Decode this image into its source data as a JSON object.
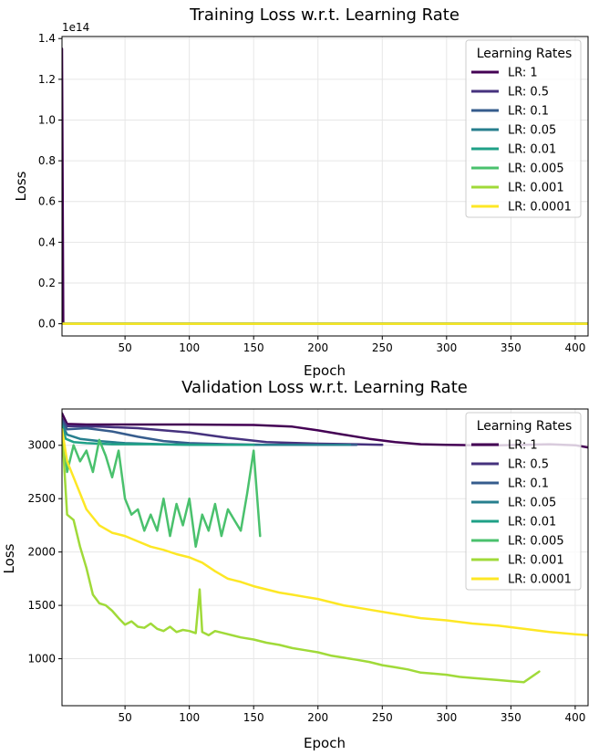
{
  "chart_data": [
    {
      "type": "line",
      "title": "Training Loss w.r.t. Learning Rate",
      "xlabel": "Epoch",
      "ylabel": "Loss",
      "y_offset_label": "1e14",
      "xlim": [
        1,
        410
      ],
      "ylim": [
        -0.06,
        1.41
      ],
      "x_ticks": [
        50,
        100,
        150,
        200,
        250,
        300,
        350,
        400
      ],
      "y_ticks": [
        0.0,
        0.2,
        0.4,
        0.6,
        0.8,
        1.0,
        1.2,
        1.4
      ],
      "y_tick_labels": [
        "0.0",
        "0.2",
        "0.4",
        "0.6",
        "0.8",
        "1.0",
        "1.2",
        "1.4"
      ],
      "grid": true,
      "legend": {
        "title": "Learning Rates",
        "position": "top-right"
      },
      "series": [
        {
          "name": "LR: 1",
          "color": "#440154",
          "x": [
            1,
            2,
            3,
            10,
            100,
            200,
            300,
            410
          ],
          "y": [
            1.35,
            0.003,
            0.0,
            0.0,
            0.0,
            0.0,
            0.0,
            0.0
          ]
        },
        {
          "name": "LR: 0.5",
          "color": "#46327e",
          "x": [
            1,
            410
          ],
          "y": [
            0.0,
            0.0
          ]
        },
        {
          "name": "LR: 0.1",
          "color": "#365c8d",
          "x": [
            1,
            410
          ],
          "y": [
            0.0,
            0.0
          ]
        },
        {
          "name": "LR: 0.05",
          "color": "#277f8e",
          "x": [
            1,
            410
          ],
          "y": [
            0.0,
            0.0
          ]
        },
        {
          "name": "LR: 0.01",
          "color": "#1fa187",
          "x": [
            1,
            410
          ],
          "y": [
            0.0,
            0.0
          ]
        },
        {
          "name": "LR: 0.005",
          "color": "#4ac16d",
          "x": [
            1,
            410
          ],
          "y": [
            0.0,
            0.0
          ]
        },
        {
          "name": "LR: 0.001",
          "color": "#a0da39",
          "x": [
            1,
            410
          ],
          "y": [
            0.0,
            0.0
          ]
        },
        {
          "name": "LR: 0.0001",
          "color": "#fde725",
          "x": [
            1,
            410
          ],
          "y": [
            0.0,
            0.0
          ]
        }
      ]
    },
    {
      "type": "line",
      "title": "Validation Loss w.r.t. Learning Rate",
      "xlabel": "Epoch",
      "ylabel": "Loss",
      "xlim": [
        1,
        410
      ],
      "ylim": [
        560,
        3340
      ],
      "x_ticks": [
        50,
        100,
        150,
        200,
        250,
        300,
        350,
        400
      ],
      "y_ticks": [
        1000,
        1500,
        2000,
        2500,
        3000
      ],
      "y_tick_labels": [
        "1000",
        "1500",
        "2000",
        "2500",
        "3000"
      ],
      "grid": true,
      "legend": {
        "title": "Learning Rates",
        "position": "top-right"
      },
      "series": [
        {
          "name": "LR: 1",
          "color": "#440154",
          "x": [
            1,
            5,
            20,
            50,
            100,
            150,
            180,
            200,
            220,
            240,
            260,
            280,
            300,
            320,
            340,
            360,
            380,
            400,
            410
          ],
          "y": [
            3300,
            3200,
            3195,
            3195,
            3195,
            3190,
            3175,
            3140,
            3100,
            3060,
            3030,
            3010,
            3005,
            3000,
            3000,
            3005,
            3010,
            3000,
            2980
          ]
        },
        {
          "name": "LR: 0.5",
          "color": "#46327e",
          "x": [
            1,
            5,
            30,
            60,
            100,
            130,
            160,
            200,
            230,
            250
          ],
          "y": [
            3250,
            3180,
            3175,
            3160,
            3120,
            3070,
            3030,
            3015,
            3010,
            3005
          ]
        },
        {
          "name": "LR: 0.1",
          "color": "#365c8d",
          "x": [
            1,
            5,
            20,
            40,
            60,
            80,
            100,
            130,
            160,
            200,
            230
          ],
          "y": [
            3230,
            3150,
            3160,
            3130,
            3080,
            3040,
            3020,
            3010,
            3005,
            3005,
            3005
          ]
        },
        {
          "name": "LR: 0.05",
          "color": "#277f8e",
          "x": [
            1,
            5,
            15,
            30,
            50,
            80,
            120,
            160,
            200,
            225
          ],
          "y": [
            3200,
            3100,
            3060,
            3040,
            3020,
            3010,
            3005,
            3005,
            3005,
            3005
          ]
        },
        {
          "name": "LR: 0.01",
          "color": "#1fa187",
          "x": [
            1,
            4,
            10,
            20,
            40,
            70,
            100,
            130,
            150
          ],
          "y": [
            3180,
            3060,
            3030,
            3020,
            3010,
            3010,
            3005,
            3005,
            3005
          ]
        },
        {
          "name": "LR: 0.005",
          "color": "#4ac16d",
          "x": [
            1,
            5,
            10,
            15,
            20,
            25,
            30,
            35,
            40,
            45,
            50,
            55,
            60,
            65,
            70,
            75,
            80,
            85,
            90,
            95,
            100,
            105,
            110,
            115,
            120,
            125,
            130,
            135,
            140,
            145,
            150,
            155
          ],
          "y": [
            3150,
            2750,
            3000,
            2850,
            2950,
            2750,
            3050,
            2900,
            2700,
            2950,
            2500,
            2350,
            2400,
            2200,
            2350,
            2200,
            2500,
            2150,
            2450,
            2250,
            2500,
            2050,
            2350,
            2200,
            2450,
            2150,
            2400,
            2300,
            2200,
            2550,
            2950,
            2150
          ]
        },
        {
          "name": "LR: 0.001",
          "color": "#a0da39",
          "x": [
            1,
            5,
            10,
            15,
            20,
            25,
            30,
            35,
            40,
            45,
            50,
            55,
            60,
            65,
            70,
            75,
            80,
            85,
            90,
            95,
            100,
            105,
            108,
            110,
            115,
            120,
            130,
            140,
            150,
            160,
            170,
            180,
            190,
            200,
            210,
            220,
            230,
            240,
            250,
            260,
            270,
            280,
            290,
            300,
            310,
            320,
            330,
            340,
            350,
            360,
            372
          ],
          "y": [
            3150,
            2350,
            2300,
            2050,
            1850,
            1600,
            1520,
            1500,
            1450,
            1380,
            1320,
            1350,
            1300,
            1290,
            1330,
            1280,
            1260,
            1300,
            1250,
            1270,
            1260,
            1240,
            1650,
            1250,
            1220,
            1260,
            1230,
            1200,
            1180,
            1150,
            1130,
            1100,
            1080,
            1060,
            1030,
            1010,
            990,
            970,
            940,
            920,
            900,
            870,
            860,
            850,
            830,
            820,
            810,
            800,
            790,
            780,
            880
          ]
        },
        {
          "name": "LR: 0.0001",
          "color": "#fde725",
          "x": [
            1,
            5,
            10,
            15,
            20,
            30,
            40,
            50,
            60,
            70,
            80,
            90,
            100,
            110,
            120,
            130,
            140,
            150,
            160,
            170,
            180,
            190,
            200,
            220,
            240,
            260,
            280,
            300,
            320,
            340,
            360,
            380,
            400,
            410
          ],
          "y": [
            3150,
            2850,
            2700,
            2550,
            2400,
            2250,
            2180,
            2150,
            2100,
            2050,
            2020,
            1980,
            1950,
            1900,
            1820,
            1750,
            1720,
            1680,
            1650,
            1620,
            1600,
            1580,
            1560,
            1500,
            1460,
            1420,
            1380,
            1360,
            1330,
            1310,
            1280,
            1250,
            1230,
            1220
          ]
        }
      ]
    }
  ]
}
